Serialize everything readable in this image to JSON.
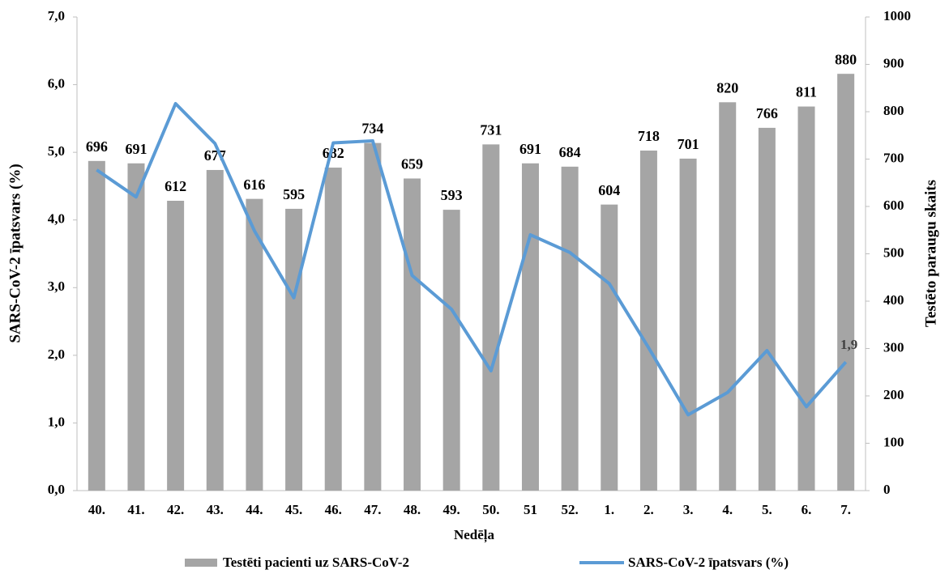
{
  "chart_data": {
    "type": "bar-line",
    "x_label": "Nedēļa",
    "y_label": "SARS-CoV-2 īpatsvars (%)",
    "y2_label": "Testēto paraugu skaits",
    "categories": [
      "40.",
      "41.",
      "42.",
      "43.",
      "44.",
      "45.",
      "46.",
      "47.",
      "48.",
      "49.",
      "50.",
      "51",
      "52.",
      "1.",
      "2.",
      "3.",
      "4.",
      "5.",
      "6.",
      "7."
    ],
    "series": [
      {
        "name": "Testēti pacienti uz SARS-CoV-2",
        "type": "bar",
        "axis": "y2",
        "color": "#a5a5a5",
        "values": [
          696,
          691,
          612,
          677,
          616,
          595,
          682,
          734,
          659,
          593,
          731,
          691,
          684,
          604,
          718,
          701,
          820,
          766,
          811,
          880
        ]
      },
      {
        "name": "SARS-CoV-2 īpatsvars (%)",
        "type": "line",
        "axis": "y",
        "color": "#5b9bd5",
        "values": [
          4.74,
          4.34,
          5.72,
          5.13,
          3.84,
          2.85,
          5.14,
          5.17,
          3.18,
          2.68,
          1.77,
          3.78,
          3.52,
          3.06,
          2.11,
          1.12,
          1.45,
          2.07,
          1.24,
          1.9
        ],
        "value_labels": [
          null,
          null,
          null,
          null,
          null,
          null,
          null,
          null,
          null,
          null,
          null,
          null,
          null,
          null,
          null,
          null,
          null,
          null,
          null,
          "1,9"
        ]
      }
    ],
    "ylim": [
      0,
      7
    ],
    "yticks": [
      {
        "value": 0,
        "label": "0,0"
      },
      {
        "value": 1,
        "label": "1,0"
      },
      {
        "value": 2,
        "label": "2,0"
      },
      {
        "value": 3,
        "label": "3,0"
      },
      {
        "value": 4,
        "label": "4,0"
      },
      {
        "value": 5,
        "label": "5,0"
      },
      {
        "value": 6,
        "label": "6,0"
      },
      {
        "value": 7,
        "label": "7,0"
      }
    ],
    "y2lim": [
      0,
      1000
    ],
    "y2ticks": [
      0,
      100,
      200,
      300,
      400,
      500,
      600,
      700,
      800,
      900,
      1000
    ],
    "grid": false
  }
}
